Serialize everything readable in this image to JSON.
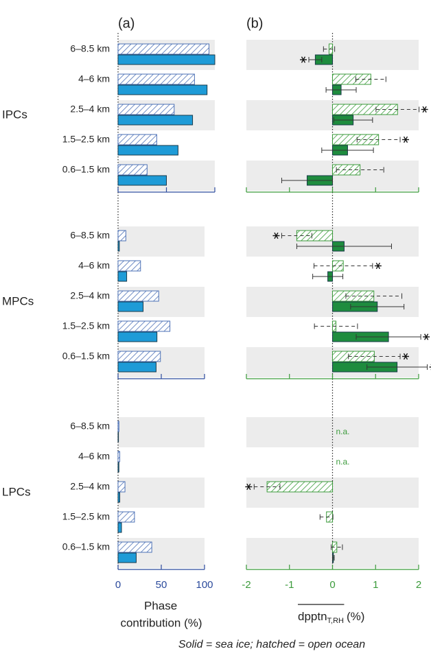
{
  "chart_data": [
    {
      "type": "bar",
      "orientation": "horizontal",
      "panel": "(a)",
      "xlabel": [
        "Phase",
        "contribution (%)"
      ],
      "xlim": [
        0,
        100
      ],
      "xticks": [
        0,
        50,
        100
      ],
      "axis_color": "#2b4a9c",
      "groups": [
        {
          "name": "IPCs",
          "categories": [
            "6–8.5 km",
            "4–6 km",
            "2.5–4 km",
            "1.5–2.5 km",
            "0.6–1.5 km"
          ],
          "series": [
            {
              "pattern": "hatched",
              "color": "#4a6fb5",
              "values": [
                94,
                79,
                58,
                40,
                30
              ]
            },
            {
              "pattern": "solid",
              "color": "#1e9bd7",
              "values": [
                100,
                92,
                77,
                62,
                50
              ]
            }
          ]
        },
        {
          "name": "MPCs",
          "categories": [
            "6–8.5 km",
            "4–6 km",
            "2.5–4 km",
            "1.5–2.5 km",
            "0.6–1.5 km"
          ],
          "series": [
            {
              "pattern": "hatched",
              "color": "#4a6fb5",
              "values": [
                9,
                26,
                47,
                60,
                49
              ]
            },
            {
              "pattern": "solid",
              "color": "#1e9bd7",
              "values": [
                1.5,
                10,
                29,
                45,
                44
              ]
            }
          ]
        },
        {
          "name": "LPCs",
          "categories": [
            "6–8.5 km",
            "4–6 km",
            "2.5–4 km",
            "1.5–2.5 km",
            "0.6–1.5 km"
          ],
          "series": [
            {
              "pattern": "hatched",
              "color": "#4a6fb5",
              "values": [
                1,
                2,
                8,
                19,
                39
              ]
            },
            {
              "pattern": "solid",
              "color": "#1e9bd7",
              "values": [
                0.5,
                1,
                2,
                4,
                21
              ]
            }
          ]
        }
      ]
    },
    {
      "type": "bar",
      "orientation": "horizontal",
      "panel": "(b)",
      "xlabel": "dpptn",
      "xlabel_sub": "T,RH",
      "xlabel_unit": "(%)",
      "xlim": [
        -2,
        2
      ],
      "xticks": [
        -2,
        -1,
        0,
        1,
        2
      ],
      "axis_color": "#3a9a3a",
      "groups": [
        {
          "series": [
            {
              "pattern": "hatched",
              "color": "#3a9a3a",
              "values": [
                -0.08,
                0.89,
                1.51,
                1.07,
                0.64
              ],
              "errors": [
                0.13,
                0.35,
                0.5,
                0.5,
                0.55
              ],
              "significant": [
                false,
                false,
                true,
                true,
                false
              ]
            },
            {
              "pattern": "solid",
              "color": "#1e8c3e",
              "values": [
                -0.4,
                0.2,
                0.48,
                0.35,
                -0.59
              ],
              "errors": [
                0.15,
                0.35,
                0.45,
                0.6,
                0.59
              ],
              "significant": [
                true,
                false,
                false,
                false,
                false
              ]
            }
          ]
        },
        {
          "series": [
            {
              "pattern": "hatched",
              "color": "#3a9a3a",
              "values": [
                -0.83,
                0.25,
                0.96,
                0.08,
                0.97
              ],
              "errors": [
                0.35,
                0.68,
                0.65,
                0.5,
                0.6
              ],
              "significant": [
                true,
                true,
                false,
                false,
                true
              ]
            },
            {
              "pattern": "solid",
              "color": "#1e8c3e",
              "values": [
                0.27,
                -0.11,
                1.04,
                1.3,
                1.5
              ],
              "errors": [
                1.1,
                0.35,
                0.62,
                0.75,
                0.7
              ],
              "significant": [
                false,
                false,
                false,
                true,
                true
              ]
            }
          ]
        },
        {
          "series": [
            {
              "pattern": "hatched",
              "color": "#3a9a3a",
              "values": [
                null,
                null,
                -1.52,
                -0.14,
                0.1
              ],
              "errors": [
                null,
                null,
                0.3,
                0.15,
                0.13
              ],
              "significant": [
                false,
                false,
                true,
                false,
                false
              ]
            },
            {
              "pattern": "solid",
              "color": "#1e8c3e",
              "values": [
                null,
                null,
                null,
                null,
                0.02
              ],
              "errors": [
                null,
                null,
                null,
                null,
                0.02
              ],
              "significant": [
                false,
                false,
                false,
                false,
                false
              ]
            }
          ],
          "notes": [
            {
              "row": 0,
              "text": "n.a."
            },
            {
              "row": 1,
              "text": "n.a."
            }
          ]
        }
      ]
    }
  ],
  "footnote": "Solid = sea ice;   hatched = open ocean"
}
